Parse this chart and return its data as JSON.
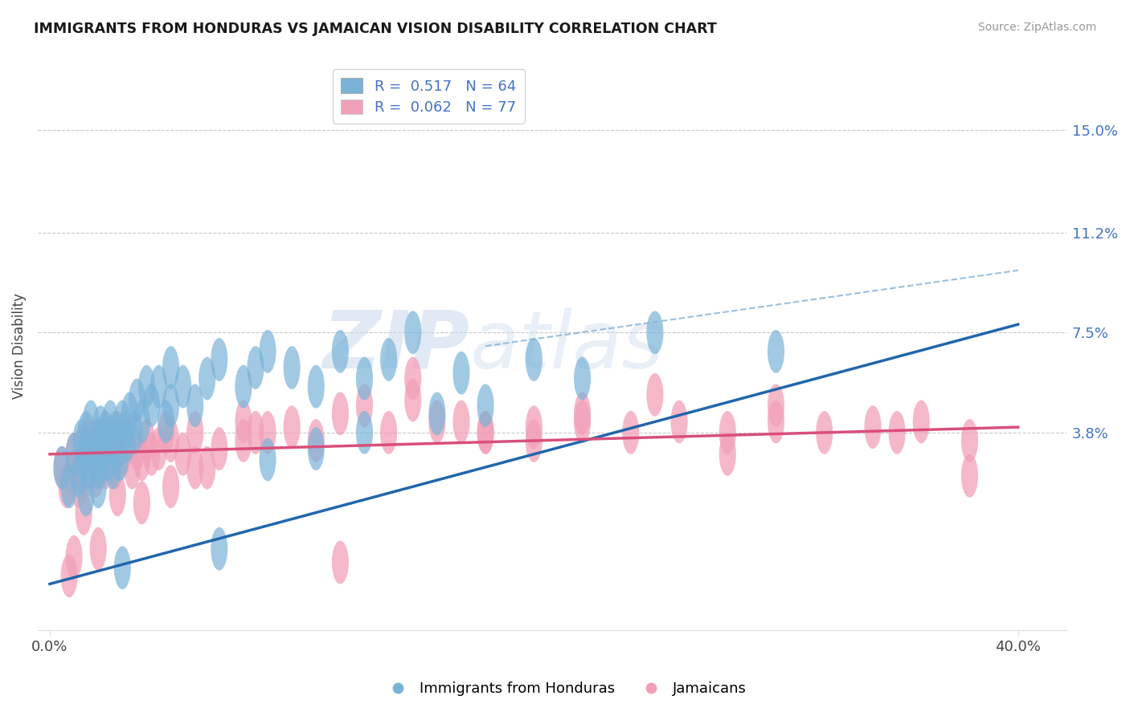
{
  "title": "IMMIGRANTS FROM HONDURAS VS JAMAICAN VISION DISABILITY CORRELATION CHART",
  "source": "Source: ZipAtlas.com",
  "ylabel": "Vision Disability",
  "xlim": [
    -0.005,
    0.42
  ],
  "ylim": [
    -0.035,
    0.175
  ],
  "yticks": [
    0.038,
    0.075,
    0.112,
    0.15
  ],
  "ytick_labels": [
    "3.8%",
    "7.5%",
    "11.2%",
    "15.0%"
  ],
  "xtick_labels": [
    "0.0%",
    "40.0%"
  ],
  "grid_color": "#c8c8c8",
  "background": "#ffffff",
  "series1_color": "#7ab3d8",
  "series2_color": "#f2a0b8",
  "R1": 0.517,
  "N1": 64,
  "R2": 0.062,
  "N2": 77,
  "label1": "Immigrants from Honduras",
  "label2": "Jamaicans",
  "watermark": "ZIPatlas",
  "blue_line_x0": 0.0,
  "blue_line_y0": -0.018,
  "blue_line_x1": 0.4,
  "blue_line_y1": 0.078,
  "pink_line_x0": 0.0,
  "pink_line_y0": 0.03,
  "pink_line_x1": 0.4,
  "pink_line_y1": 0.04,
  "dash_line_x0": 0.18,
  "dash_line_y0": 0.07,
  "dash_line_x1": 0.4,
  "dash_line_y1": 0.098,
  "scatter1_x": [
    0.005,
    0.008,
    0.01,
    0.012,
    0.013,
    0.014,
    0.015,
    0.015,
    0.016,
    0.017,
    0.018,
    0.019,
    0.02,
    0.02,
    0.021,
    0.022,
    0.023,
    0.024,
    0.025,
    0.025,
    0.026,
    0.027,
    0.028,
    0.029,
    0.03,
    0.031,
    0.032,
    0.033,
    0.035,
    0.036,
    0.038,
    0.04,
    0.042,
    0.045,
    0.048,
    0.05,
    0.055,
    0.06,
    0.065,
    0.07,
    0.08,
    0.085,
    0.09,
    0.1,
    0.11,
    0.12,
    0.13,
    0.14,
    0.15,
    0.17,
    0.2,
    0.25,
    0.3,
    0.22,
    0.18,
    0.16,
    0.13,
    0.11,
    0.09,
    0.07,
    0.05,
    0.03,
    0.02,
    0.015
  ],
  "scatter1_y": [
    0.025,
    0.018,
    0.03,
    0.022,
    0.035,
    0.028,
    0.032,
    0.038,
    0.025,
    0.042,
    0.03,
    0.028,
    0.035,
    0.025,
    0.04,
    0.032,
    0.038,
    0.028,
    0.042,
    0.035,
    0.025,
    0.038,
    0.032,
    0.028,
    0.042,
    0.038,
    0.035,
    0.045,
    0.038,
    0.05,
    0.042,
    0.055,
    0.048,
    0.055,
    0.042,
    0.062,
    0.055,
    0.048,
    0.058,
    0.065,
    0.055,
    0.062,
    0.068,
    0.062,
    0.055,
    0.068,
    0.058,
    0.065,
    0.075,
    0.06,
    0.065,
    0.075,
    0.068,
    0.058,
    0.048,
    0.045,
    0.038,
    0.032,
    0.028,
    -0.005,
    0.048,
    -0.012,
    0.018,
    0.015
  ],
  "scatter2_x": [
    0.005,
    0.007,
    0.009,
    0.01,
    0.011,
    0.012,
    0.013,
    0.014,
    0.015,
    0.016,
    0.017,
    0.018,
    0.019,
    0.02,
    0.021,
    0.022,
    0.023,
    0.024,
    0.025,
    0.026,
    0.027,
    0.028,
    0.03,
    0.032,
    0.034,
    0.036,
    0.038,
    0.04,
    0.042,
    0.045,
    0.048,
    0.05,
    0.055,
    0.06,
    0.07,
    0.08,
    0.09,
    0.1,
    0.12,
    0.14,
    0.16,
    0.18,
    0.2,
    0.22,
    0.24,
    0.26,
    0.28,
    0.3,
    0.32,
    0.34,
    0.36,
    0.38,
    0.15,
    0.17,
    0.13,
    0.11,
    0.085,
    0.065,
    0.05,
    0.038,
    0.028,
    0.02,
    0.014,
    0.01,
    0.008,
    0.35,
    0.25,
    0.3,
    0.2,
    0.18,
    0.28,
    0.22,
    0.38,
    0.15,
    0.12,
    0.08,
    0.06
  ],
  "scatter2_y": [
    0.025,
    0.018,
    0.022,
    0.03,
    0.025,
    0.018,
    0.032,
    0.028,
    0.022,
    0.035,
    0.025,
    0.03,
    0.022,
    0.035,
    0.028,
    0.032,
    0.025,
    0.028,
    0.035,
    0.03,
    0.025,
    0.038,
    0.03,
    0.035,
    0.025,
    0.032,
    0.028,
    0.035,
    0.03,
    0.032,
    0.038,
    0.035,
    0.03,
    0.038,
    0.032,
    0.035,
    0.038,
    0.04,
    0.045,
    0.038,
    0.042,
    0.038,
    0.04,
    0.045,
    0.038,
    0.042,
    0.038,
    0.042,
    0.038,
    0.04,
    0.042,
    0.035,
    0.058,
    0.042,
    0.048,
    0.035,
    0.038,
    0.025,
    0.018,
    0.012,
    0.015,
    -0.005,
    0.008,
    -0.008,
    -0.015,
    0.038,
    0.052,
    0.048,
    0.035,
    0.038,
    0.03,
    0.042,
    0.022,
    0.05,
    -0.01,
    0.042,
    0.025
  ]
}
